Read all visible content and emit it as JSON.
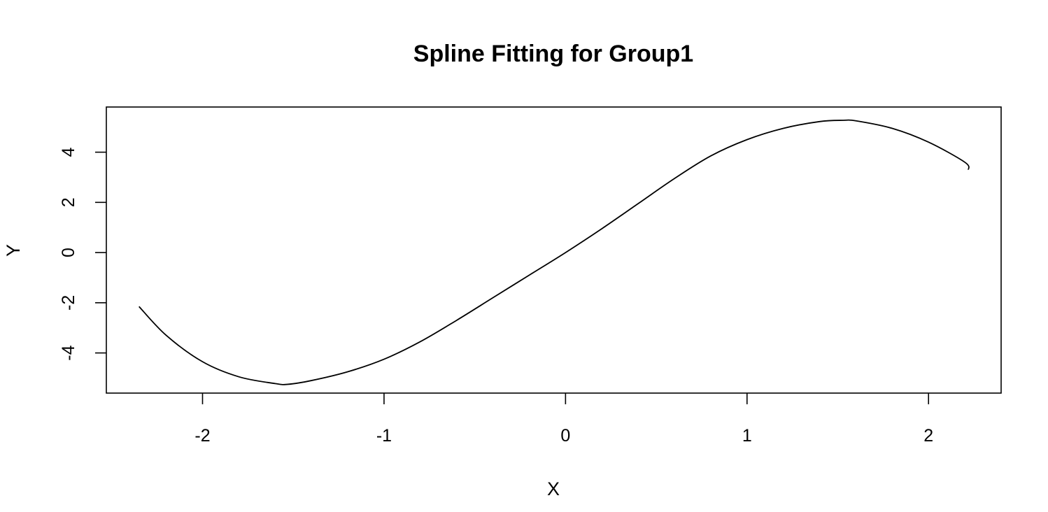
{
  "chart_data": {
    "type": "line",
    "title": "Spline Fitting for Group1",
    "xlabel": "X",
    "ylabel": "Y",
    "xlim": [
      -2.53,
      2.4
    ],
    "ylim": [
      -5.6,
      5.8
    ],
    "x_ticks": [
      -2,
      -1,
      0,
      1,
      2
    ],
    "x_tick_labels": [
      "-2",
      "-1",
      "0",
      "1",
      "2"
    ],
    "y_ticks": [
      -4,
      -2,
      0,
      2,
      4
    ],
    "y_tick_labels": [
      "-4",
      "-2",
      "0",
      "2",
      "4"
    ],
    "grid": false,
    "series": [
      {
        "color": "#000000",
        "x": [
          -2.35,
          -2.2,
          -2.0,
          -1.8,
          -1.6,
          -1.53,
          -1.4,
          -1.2,
          -1.0,
          -0.8,
          -0.6,
          -0.4,
          -0.2,
          0.0,
          0.2,
          0.4,
          0.6,
          0.8,
          1.0,
          1.2,
          1.4,
          1.53,
          1.6,
          1.8,
          2.0,
          2.2,
          2.22
        ],
        "y": [
          -2.15,
          -3.3,
          -4.35,
          -4.95,
          -5.22,
          -5.25,
          -5.1,
          -4.75,
          -4.25,
          -3.55,
          -2.7,
          -1.8,
          -0.9,
          0.0,
          0.95,
          1.95,
          2.95,
          3.85,
          4.5,
          4.95,
          5.22,
          5.27,
          5.25,
          4.95,
          4.4,
          3.6,
          3.3
        ]
      }
    ]
  }
}
